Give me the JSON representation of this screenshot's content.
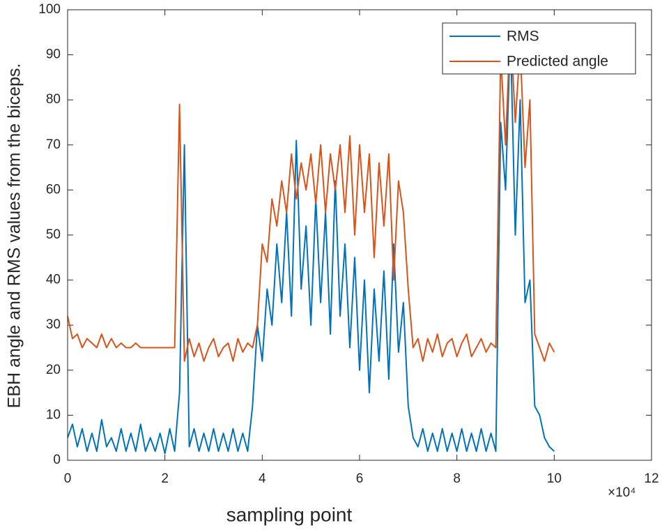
{
  "chart_data": {
    "type": "line",
    "xlabel": "sampling point",
    "ylabel": "EBH angle  and RMS values from the biceps.",
    "x_exponent_label": "×10⁴",
    "x": [
      0,
      1000,
      2000,
      3000,
      4000,
      5000,
      6000,
      7000,
      8000,
      9000,
      10000,
      11000,
      12000,
      13000,
      14000,
      15000,
      16000,
      17000,
      18000,
      19000,
      20000,
      21000,
      22000,
      23000,
      24000,
      25000,
      26000,
      27000,
      28000,
      29000,
      30000,
      31000,
      32000,
      33000,
      34000,
      35000,
      36000,
      37000,
      38000,
      39000,
      40000,
      41000,
      42000,
      43000,
      44000,
      45000,
      46000,
      47000,
      48000,
      49000,
      50000,
      51000,
      52000,
      53000,
      54000,
      55000,
      56000,
      57000,
      58000,
      59000,
      60000,
      61000,
      62000,
      63000,
      64000,
      65000,
      66000,
      67000,
      68000,
      69000,
      70000,
      71000,
      72000,
      73000,
      74000,
      75000,
      76000,
      77000,
      78000,
      79000,
      80000,
      81000,
      82000,
      83000,
      84000,
      85000,
      86000,
      87000,
      88000,
      89000,
      90000,
      91000,
      92000,
      93000,
      94000,
      95000,
      96000,
      97000,
      98000,
      99000,
      100000
    ],
    "series": [
      {
        "name": "RMS",
        "color": "#0072BD",
        "values": [
          5,
          8,
          3,
          7,
          2,
          6,
          2,
          9,
          3,
          5,
          2,
          7,
          2,
          6,
          2,
          8,
          2,
          5,
          2,
          6,
          1.5,
          7,
          2,
          15,
          70,
          3,
          7,
          2,
          6,
          2,
          7,
          2,
          6,
          2,
          7,
          2,
          6,
          2,
          12,
          30,
          22,
          38,
          30,
          48,
          35,
          55,
          32,
          71,
          38,
          52,
          30,
          58,
          35,
          55,
          28,
          62,
          32,
          48,
          25,
          45,
          20,
          40,
          15,
          38,
          22,
          42,
          18,
          48,
          24,
          35,
          12,
          5,
          3,
          7,
          2,
          6,
          2,
          7,
          2,
          6,
          2,
          7,
          2,
          6,
          2,
          7,
          2,
          6,
          2,
          75,
          60,
          95,
          50,
          80,
          35,
          40,
          12,
          10,
          5,
          3,
          2
        ]
      },
      {
        "name": "Predicted angle",
        "color": "#D95319",
        "values": [
          32,
          27,
          28,
          25,
          27,
          26,
          25,
          28,
          25,
          27,
          25,
          26,
          25,
          25,
          26,
          25,
          25,
          25,
          25,
          25,
          25,
          25,
          25,
          79,
          22,
          27,
          23,
          26,
          22,
          25,
          27,
          23,
          25,
          26,
          22,
          27,
          24,
          26,
          25,
          30,
          48,
          44,
          58,
          52,
          62,
          55,
          68,
          58,
          66,
          60,
          68,
          57,
          70,
          55,
          68,
          60,
          70,
          55,
          72,
          50,
          70,
          55,
          68,
          45,
          66,
          52,
          68,
          40,
          62,
          55,
          38,
          25,
          27,
          22,
          27,
          24,
          28,
          23,
          26,
          27,
          23,
          26,
          28,
          23,
          25,
          27,
          24,
          26,
          25,
          90,
          70,
          97,
          75,
          92,
          65,
          80,
          28,
          25,
          22,
          26,
          24
        ]
      }
    ],
    "xlim": [
      0,
      120000
    ],
    "xticks": [
      0,
      {
        "value": 20000,
        "label": "2"
      },
      {
        "value": 40000,
        "label": "4"
      },
      {
        "value": 60000,
        "label": "6"
      },
      {
        "value": 80000,
        "label": "8"
      },
      {
        "value": 100000,
        "label": "10"
      },
      {
        "value": 120000,
        "label": "12"
      }
    ],
    "ylim": [
      0,
      100
    ],
    "yticks": [
      0,
      10,
      20,
      30,
      40,
      50,
      60,
      70,
      80,
      90,
      100
    ],
    "grid": false,
    "legend": "top-right"
  }
}
